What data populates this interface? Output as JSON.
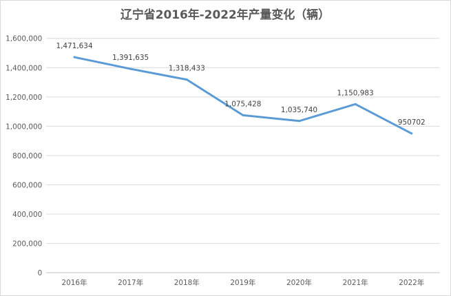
{
  "chart_data": {
    "type": "line",
    "title": "辽宁省2016年-2022年产量变化（辆）",
    "categories": [
      "2016年",
      "2017年",
      "2018年",
      "2019年",
      "2020年",
      "2021年",
      "2022年"
    ],
    "values": [
      1471634,
      1391635,
      1318433,
      1075428,
      1035740,
      1150983,
      950702
    ],
    "data_labels": [
      "1,471,634",
      "1,391,635",
      "1,318,433",
      "1,075,428",
      "1,035,740",
      "1,150,983",
      "950702"
    ],
    "ylim": [
      0,
      1600000
    ],
    "yticks": [
      0,
      200000,
      400000,
      600000,
      800000,
      1000000,
      1200000,
      1400000,
      1600000
    ],
    "ytick_labels": [
      "0",
      "200,000",
      "400,000",
      "600,000",
      "800,000",
      "1,000,000",
      "1,200,000",
      "1,400,000",
      "1,600,000"
    ],
    "xlabel": "",
    "ylabel": "",
    "grid": true,
    "line_color": "#5b9bd5"
  }
}
